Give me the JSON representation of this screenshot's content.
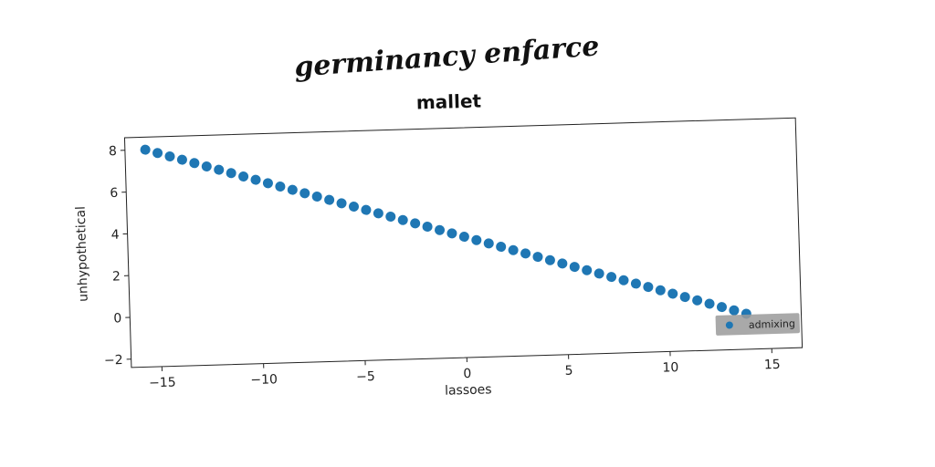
{
  "figure": {
    "suptitle": "germinancy enfarce"
  },
  "chart_data": {
    "type": "scatter",
    "title": "mallet",
    "xlabel": "lassoes",
    "ylabel": "unhypothetical",
    "xlim": [
      -16.5,
      16.5
    ],
    "ylim": [
      -2.4,
      8.6
    ],
    "xticks": [
      -15,
      -10,
      -5,
      0,
      5,
      10,
      15
    ],
    "xtick_labels": [
      "−15",
      "−10",
      "−5",
      "0",
      "5",
      "10",
      "15"
    ],
    "yticks": [
      -2,
      0,
      2,
      4,
      6,
      8
    ],
    "ytick_labels": [
      "−2",
      "0",
      "2",
      "4",
      "6",
      "8"
    ],
    "grid": false,
    "legend_position": "lower-right",
    "series": [
      {
        "name": "admixing",
        "color": "#1f77b4",
        "x_start": -15.5,
        "x_end": 13.8,
        "y_start": 8.0,
        "y_end": -0.7,
        "count": 50
      }
    ]
  }
}
